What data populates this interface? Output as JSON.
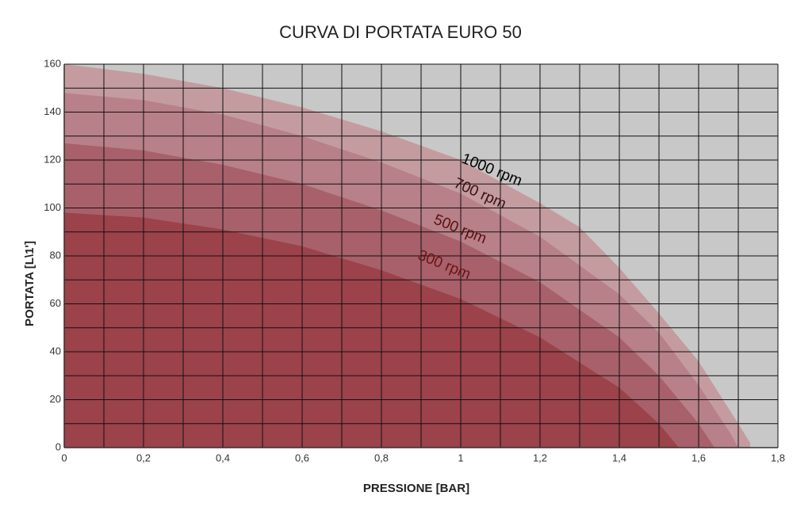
{
  "chart_data": {
    "type": "area",
    "title": "CURVA DI PORTATA EURO 50",
    "x_label": "PRESSIONE [BAR]",
    "y_label": "PORTATA [L\\1']",
    "xlim": [
      0,
      1.8
    ],
    "ylim": [
      0,
      160
    ],
    "xticks": [
      0,
      {
        "value": 0.2,
        "label": "0,2"
      },
      {
        "value": 0.4,
        "label": "0,4"
      },
      {
        "value": 0.6,
        "label": "0,6"
      },
      {
        "value": 0.8,
        "label": "0,8"
      },
      1,
      {
        "value": 1.2,
        "label": "1,2"
      },
      {
        "value": 1.4,
        "label": "1,4"
      },
      {
        "value": 1.6,
        "label": "1,6"
      },
      {
        "value": 1.8,
        "label": "1,8"
      }
    ],
    "yticks": [
      0,
      20,
      40,
      60,
      80,
      100,
      120,
      140,
      160
    ],
    "xgrid": [
      0.1,
      0.3,
      0.5,
      0.7,
      0.9,
      1.1,
      1.3,
      1.5,
      1.7
    ],
    "ygrid": [
      10,
      30,
      50,
      70,
      90,
      110,
      130,
      150
    ],
    "grid": true,
    "background": "#c8c8c8",
    "series": [
      {
        "name": "1000 rpm",
        "color": "#c49ca0",
        "x": [
          0,
          0.2,
          0.4,
          0.6,
          0.8,
          1.0,
          1.2,
          1.3,
          1.4,
          1.5,
          1.6,
          1.7,
          1.73,
          1.73
        ],
        "values": [
          160,
          156,
          150,
          142,
          132,
          120,
          102,
          92,
          75,
          56,
          36,
          10,
          2,
          0
        ]
      },
      {
        "name": "700 rpm",
        "color": "#b88088",
        "x": [
          0,
          0.2,
          0.4,
          0.6,
          0.8,
          1.0,
          1.2,
          1.4,
          1.5,
          1.6,
          1.68,
          1.7
        ],
        "values": [
          148,
          145,
          139,
          130,
          119,
          106,
          88,
          64,
          48,
          26,
          6,
          0
        ]
      },
      {
        "name": "500 rpm",
        "color": "#a8606a",
        "x": [
          0,
          0.2,
          0.4,
          0.6,
          0.8,
          1.0,
          1.2,
          1.4,
          1.5,
          1.6,
          1.64
        ],
        "values": [
          127,
          124,
          118,
          110,
          99,
          86,
          69,
          46,
          30,
          10,
          0
        ]
      },
      {
        "name": "300 rpm",
        "color": "#9b424a",
        "x": [
          0,
          0.2,
          0.4,
          0.6,
          0.8,
          1.0,
          1.2,
          1.4,
          1.5,
          1.55
        ],
        "values": [
          98,
          96,
          91,
          84,
          74,
          62,
          46,
          25,
          10,
          0
        ]
      }
    ]
  }
}
